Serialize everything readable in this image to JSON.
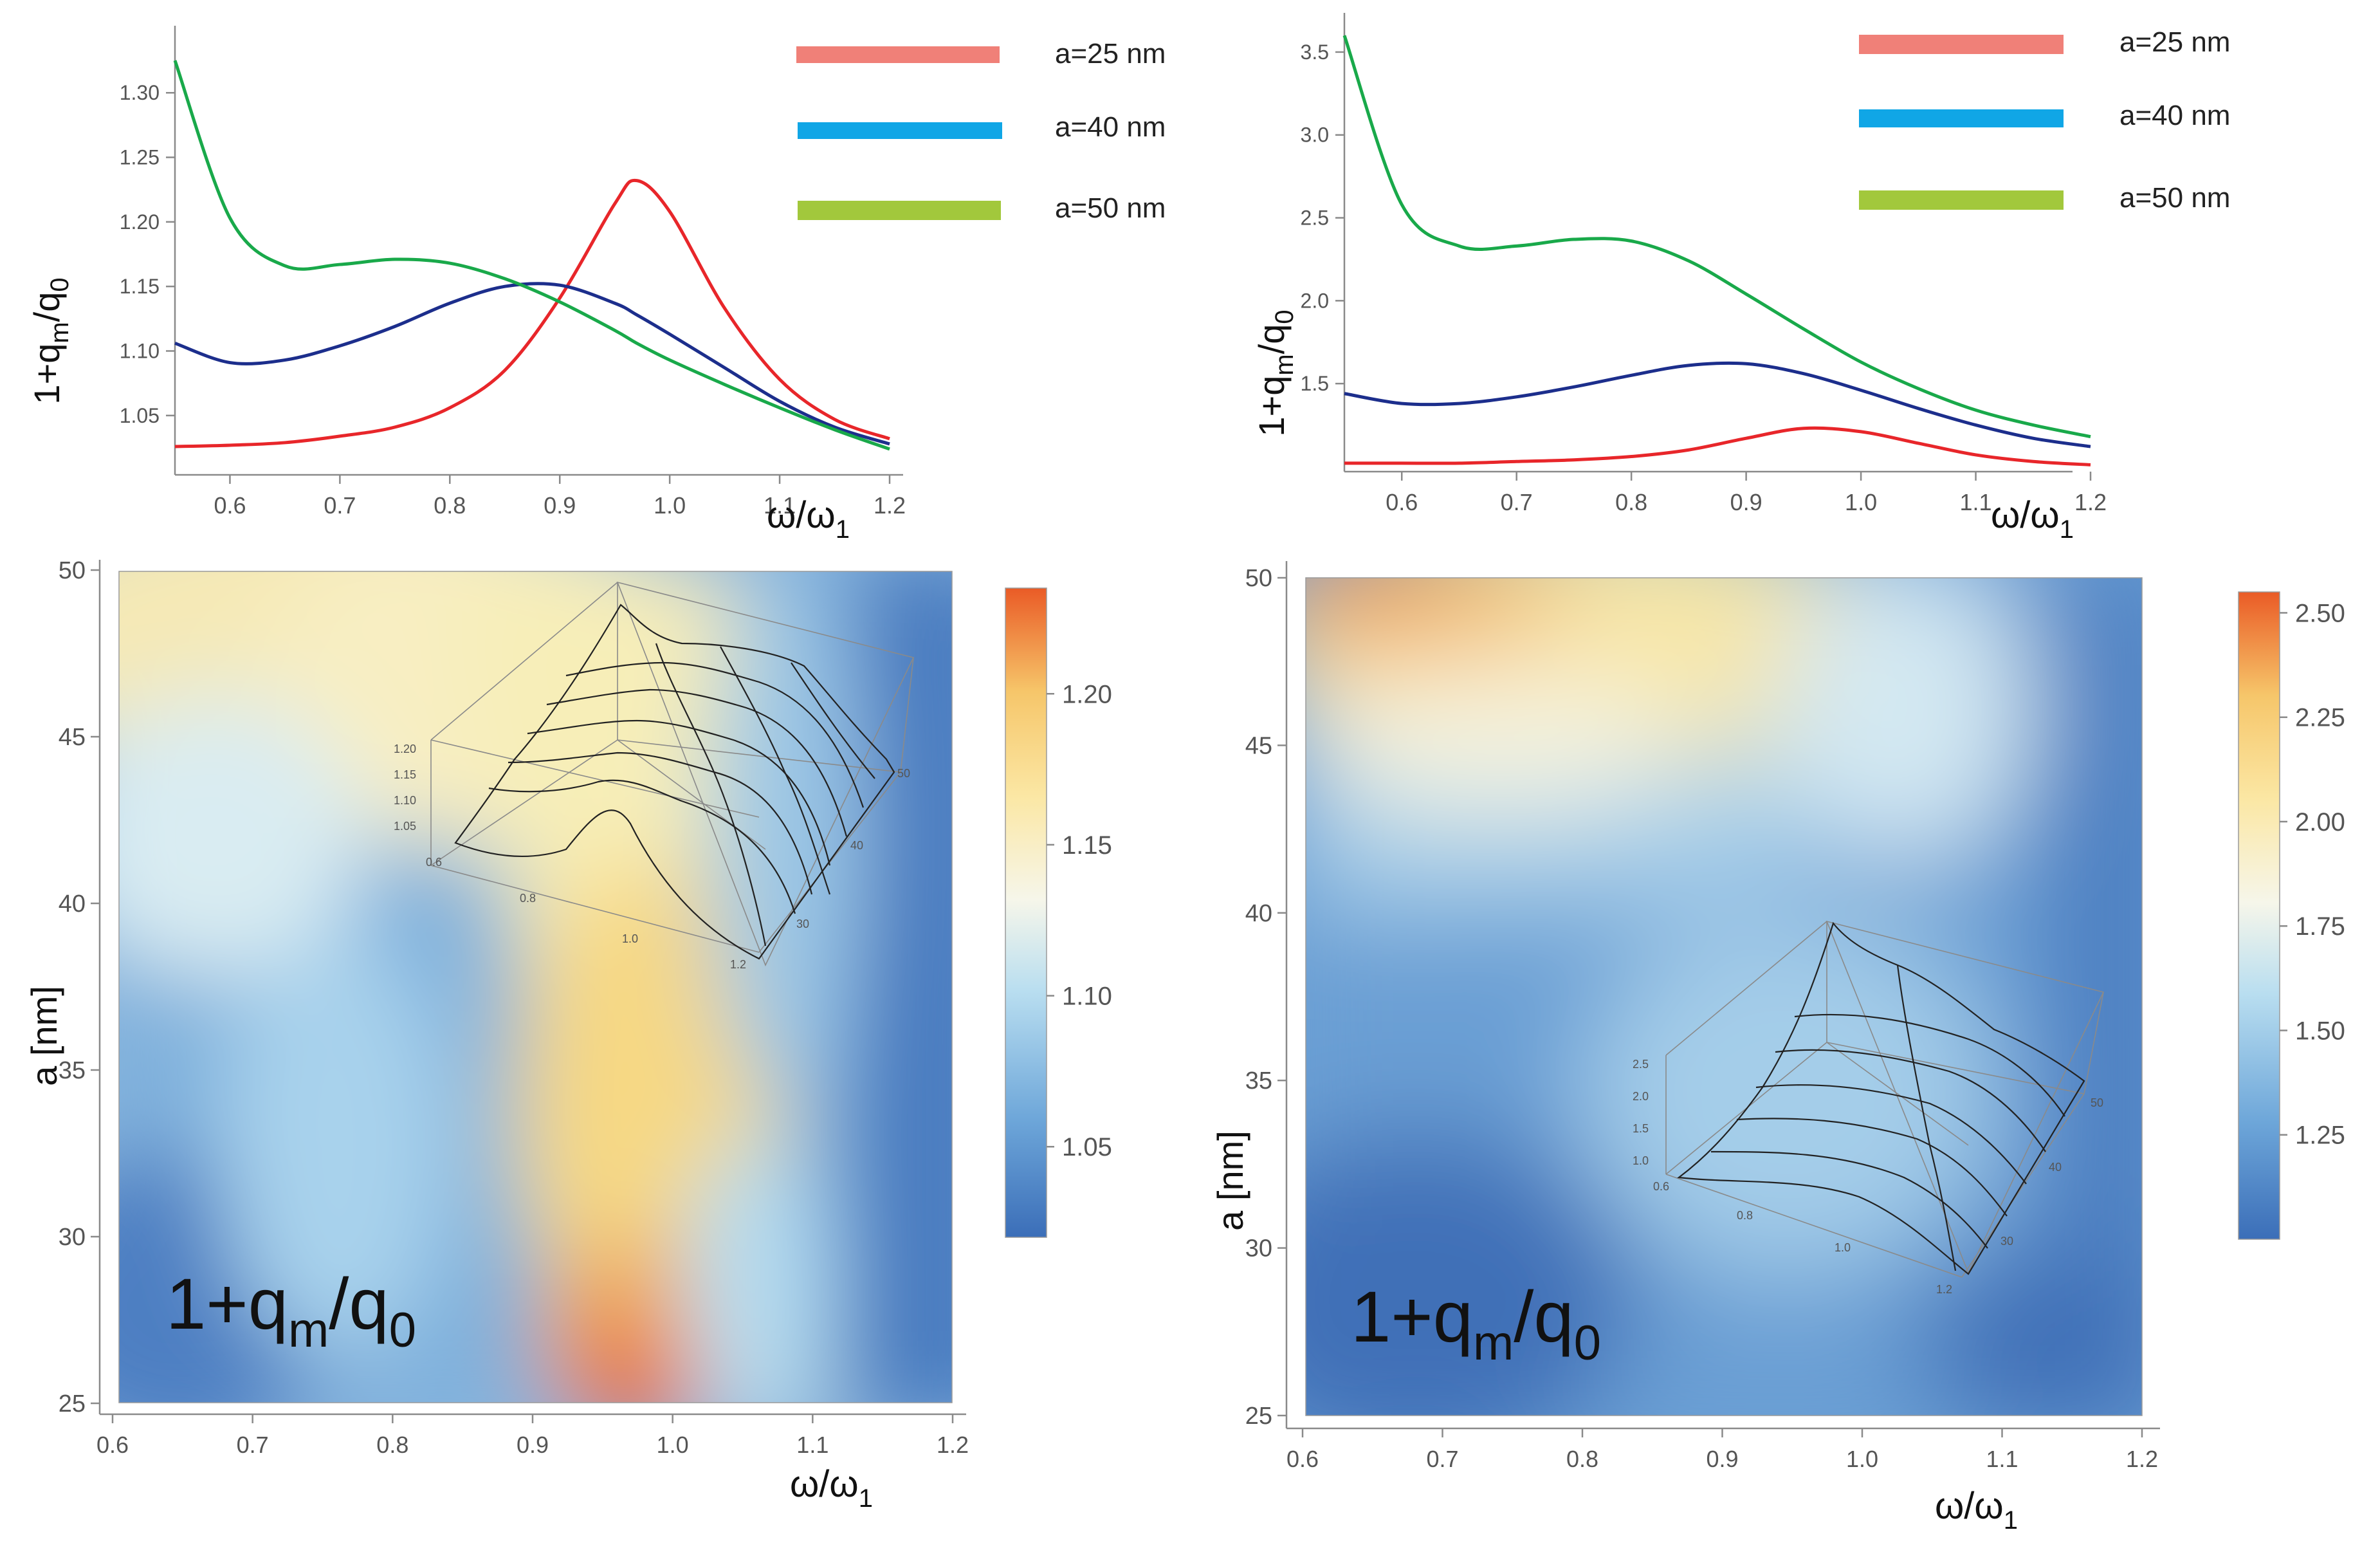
{
  "colors": {
    "red": "#e8262a",
    "blue": "#1c2e8c",
    "green": "#19a94a",
    "legend_red": "#f08078",
    "legend_blue": "#10a6e6",
    "legend_green": "#a2c83c",
    "colormap": [
      "#3b6eb8",
      "#6da6d9",
      "#b9def0",
      "#f6f6ea",
      "#fbe7a4",
      "#f6c66a",
      "#ea5b26"
    ]
  },
  "chart_data": [
    {
      "type": "line",
      "panel": "top-left",
      "xlabel": "ω/ω",
      "xlabel_sub": "1",
      "ylabel_parts": [
        "1+q",
        "m",
        "/q",
        "0"
      ],
      "xlim": [
        0.55,
        1.2
      ],
      "ylim": [
        1.02,
        1.335
      ],
      "xticks": [
        "0.6",
        "0.7",
        "0.8",
        "0.9",
        "1.0",
        "1.1",
        "1.2"
      ],
      "xtick_values": [
        0.6,
        0.7,
        0.8,
        0.9,
        1.0,
        1.1,
        1.2
      ],
      "yticks": [
        "1.05",
        "1.10",
        "1.15",
        "1.20",
        "1.25",
        "1.30"
      ],
      "ytick_values": [
        1.05,
        1.1,
        1.15,
        1.2,
        1.25,
        1.3
      ],
      "legend": [
        "a=25 nm",
        "a=40 nm",
        "a=50 nm"
      ],
      "x": [
        0.55,
        0.6,
        0.65,
        0.7,
        0.75,
        0.8,
        0.85,
        0.9,
        0.95,
        0.97,
        1.0,
        1.05,
        1.1,
        1.15,
        1.2
      ],
      "series": [
        {
          "name": "a=25 nm",
          "color": "red",
          "values": [
            1.026,
            1.027,
            1.029,
            1.034,
            1.041,
            1.056,
            1.085,
            1.141,
            1.214,
            1.232,
            1.208,
            1.133,
            1.078,
            1.047,
            1.032
          ]
        },
        {
          "name": "a=40 nm",
          "color": "blue",
          "values": [
            1.106,
            1.091,
            1.093,
            1.104,
            1.119,
            1.137,
            1.15,
            1.151,
            1.137,
            1.128,
            1.113,
            1.087,
            1.061,
            1.041,
            1.028
          ]
        },
        {
          "name": "a=50 nm",
          "color": "green",
          "values": [
            1.325,
            1.203,
            1.166,
            1.167,
            1.171,
            1.168,
            1.156,
            1.138,
            1.116,
            1.106,
            1.093,
            1.074,
            1.056,
            1.039,
            1.024
          ]
        }
      ]
    },
    {
      "type": "line",
      "panel": "top-right",
      "xlabel": "ω/ω",
      "xlabel_sub": "1",
      "ylabel_parts": [
        "1+q",
        "m",
        "/q",
        "0"
      ],
      "xlim": [
        0.55,
        1.2
      ],
      "ylim": [
        1.0,
        3.62
      ],
      "xticks": [
        "0.6",
        "0.7",
        "0.8",
        "0.9",
        "1.0",
        "1.1",
        "1.2"
      ],
      "xtick_values": [
        0.6,
        0.7,
        0.8,
        0.9,
        1.0,
        1.1,
        1.2
      ],
      "yticks": [
        "1.5",
        "2.0",
        "2.5",
        "3.0",
        "3.5"
      ],
      "ytick_values": [
        1.5,
        2.0,
        2.5,
        3.0,
        3.5
      ],
      "legend": [
        "a=25 nm",
        "a=40 nm",
        "a=50 nm"
      ],
      "x": [
        0.55,
        0.6,
        0.65,
        0.7,
        0.75,
        0.8,
        0.85,
        0.9,
        0.95,
        1.0,
        1.05,
        1.1,
        1.15,
        1.2
      ],
      "series": [
        {
          "name": "a=25 nm",
          "color": "red",
          "values": [
            1.02,
            1.02,
            1.02,
            1.03,
            1.04,
            1.06,
            1.1,
            1.17,
            1.23,
            1.21,
            1.14,
            1.07,
            1.03,
            1.01
          ]
        },
        {
          "name": "a=40 nm",
          "color": "blue",
          "values": [
            1.44,
            1.38,
            1.38,
            1.42,
            1.48,
            1.55,
            1.61,
            1.62,
            1.56,
            1.46,
            1.35,
            1.25,
            1.17,
            1.12
          ]
        },
        {
          "name": "a=50 nm",
          "color": "green",
          "values": [
            3.6,
            2.58,
            2.33,
            2.33,
            2.37,
            2.36,
            2.24,
            2.04,
            1.83,
            1.63,
            1.47,
            1.34,
            1.25,
            1.18
          ]
        }
      ]
    },
    {
      "type": "heatmap",
      "panel": "bottom-left",
      "xlabel": "ω/ω",
      "xlabel_sub": "1",
      "ylabel": "a [nm]",
      "annotation_parts": [
        "1+q",
        "m",
        "/q",
        "0"
      ],
      "xlim": [
        0.6,
        1.2
      ],
      "ylim": [
        25,
        50
      ],
      "xticks": [
        "0.6",
        "0.7",
        "0.8",
        "0.9",
        "1.0",
        "1.1",
        "1.2"
      ],
      "xtick_values": [
        0.6,
        0.7,
        0.8,
        0.9,
        1.0,
        1.1,
        1.2
      ],
      "yticks": [
        "25",
        "30",
        "35",
        "40",
        "45",
        "50"
      ],
      "ytick_values": [
        25,
        30,
        35,
        40,
        45,
        50
      ],
      "colorbar_range": [
        1.02,
        1.235
      ],
      "colorbar_ticks": [
        "1.05",
        "1.10",
        "1.15",
        "1.20"
      ],
      "colorbar_tick_values": [
        1.05,
        1.1,
        1.15,
        1.2
      ],
      "inset": {
        "type": "3d-surface",
        "z_ticks": [
          "1.20",
          "1.15",
          "1.10",
          "1.05"
        ],
        "x_ticks": [
          "0.6",
          "0.8",
          "1.0",
          "1.2"
        ],
        "a_ticks": [
          "30",
          "40",
          "50"
        ]
      }
    },
    {
      "type": "heatmap",
      "panel": "bottom-right",
      "xlabel": "ω/ω",
      "xlabel_sub": "1",
      "ylabel": "a [nm]",
      "annotation_parts": [
        "1+q",
        "m",
        "/q",
        "0"
      ],
      "xlim": [
        0.6,
        1.2
      ],
      "ylim": [
        25,
        50
      ],
      "xticks": [
        "0.6",
        "0.7",
        "0.8",
        "0.9",
        "1.0",
        "1.1",
        "1.2"
      ],
      "xtick_values": [
        0.6,
        0.7,
        0.8,
        0.9,
        1.0,
        1.1,
        1.2
      ],
      "yticks": [
        "25",
        "30",
        "35",
        "40",
        "45",
        "50"
      ],
      "ytick_values": [
        25,
        30,
        35,
        40,
        45,
        50
      ],
      "colorbar_range": [
        1.0,
        2.55
      ],
      "colorbar_ticks": [
        "1.25",
        "1.50",
        "1.75",
        "2.00",
        "2.25",
        "2.50"
      ],
      "colorbar_tick_values": [
        1.25,
        1.5,
        1.75,
        2.0,
        2.25,
        2.5
      ],
      "inset": {
        "type": "3d-surface",
        "z_ticks": [
          "2.5",
          "2.0",
          "1.5",
          "1.0"
        ],
        "x_ticks": [
          "0.6",
          "0.8",
          "1.0",
          "1.2"
        ],
        "a_ticks": [
          "30",
          "40",
          "50"
        ]
      }
    }
  ]
}
